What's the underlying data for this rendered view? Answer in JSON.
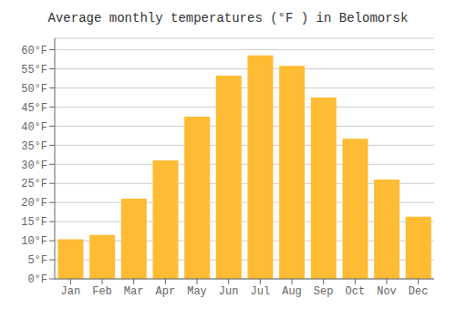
{
  "chart_data": {
    "type": "bar",
    "title": "Average monthly temperatures (°F ) in Belomorsk",
    "categories": [
      "Jan",
      "Feb",
      "Mar",
      "Apr",
      "May",
      "Jun",
      "Jul",
      "Aug",
      "Sep",
      "Oct",
      "Nov",
      "Dec"
    ],
    "values": [
      10.4,
      11.5,
      21.0,
      31.0,
      42.5,
      53.2,
      58.5,
      55.8,
      47.5,
      36.7,
      26.0,
      16.3
    ],
    "color": "#FFBB33",
    "ylim": [
      0,
      63
    ],
    "yticks": [
      {
        "value": 0,
        "label": "0°F"
      },
      {
        "value": 5,
        "label": "5°F"
      },
      {
        "value": 10,
        "label": "10°F"
      },
      {
        "value": 15,
        "label": "15°F"
      },
      {
        "value": 20,
        "label": "20°F"
      },
      {
        "value": 25,
        "label": "25°F"
      },
      {
        "value": 30,
        "label": "30°F"
      },
      {
        "value": 35,
        "label": "35°F"
      },
      {
        "value": 40,
        "label": "40°F"
      },
      {
        "value": 45,
        "label": "45°F"
      },
      {
        "value": 50,
        "label": "50°F"
      },
      {
        "value": 55,
        "label": "55°F"
      },
      {
        "value": 60,
        "label": "60°F"
      }
    ],
    "grid": true
  }
}
